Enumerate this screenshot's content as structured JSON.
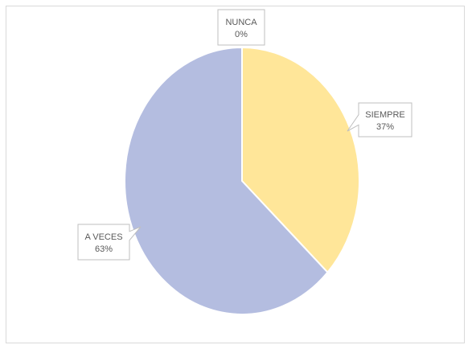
{
  "chart_data": {
    "type": "pie",
    "slices": [
      {
        "label": "SIEMPRE",
        "value": 37,
        "pct_label": "37%",
        "color": "#ffe699"
      },
      {
        "label": "A VECES",
        "value": 63,
        "pct_label": "63%",
        "color": "#b4bde0"
      },
      {
        "label": "NUNCA",
        "value": 0,
        "pct_label": "0%",
        "color": "#c9c9c9"
      }
    ],
    "start_angle_deg": 0,
    "direction": "clockwise",
    "data_labels": "callouts",
    "legend": "none"
  }
}
